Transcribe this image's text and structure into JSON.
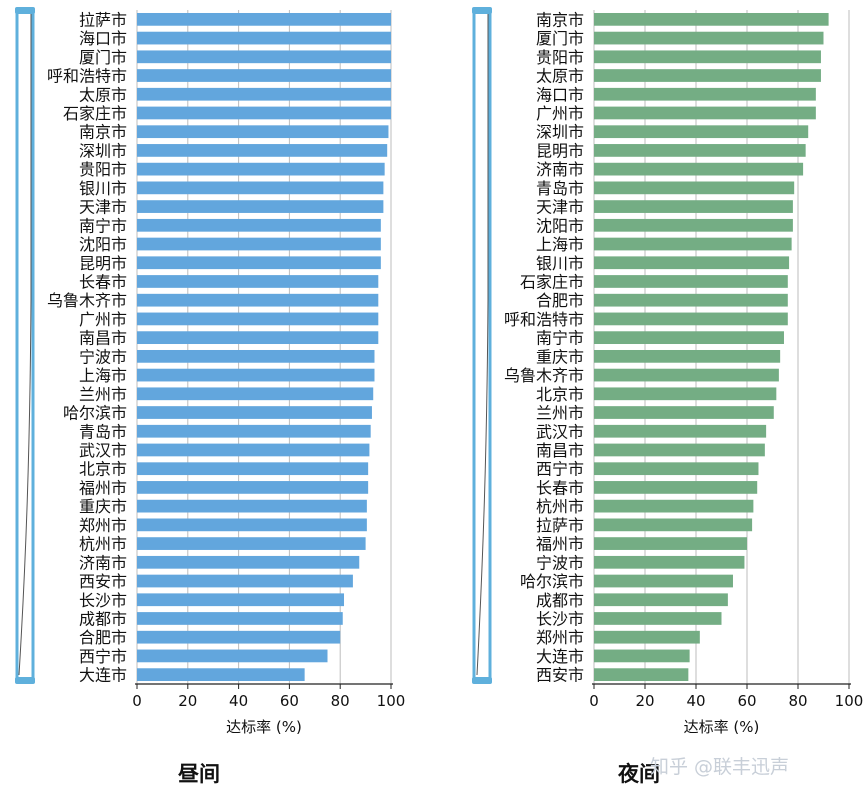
{
  "watermark": "知乎 @联丰迅声",
  "chart_data": [
    {
      "type": "bar",
      "orientation": "horizontal",
      "caption": "昼间",
      "xlabel": "达标率 (%)",
      "xlim": [
        0,
        100
      ],
      "xticks": [
        0,
        20,
        40,
        60,
        80,
        100
      ],
      "grid": true,
      "bar_color": "#62a6dd",
      "categories": [
        "拉萨市",
        "海口市",
        "厦门市",
        "呼和浩特市",
        "太原市",
        "石家庄市",
        "南京市",
        "深圳市",
        "贵阳市",
        "银川市",
        "天津市",
        "南宁市",
        "沈阳市",
        "昆明市",
        "长春市",
        "乌鲁木齐市",
        "广州市",
        "南昌市",
        "宁波市",
        "上海市",
        "兰州市",
        "哈尔滨市",
        "青岛市",
        "武汉市",
        "北京市",
        "福州市",
        "重庆市",
        "郑州市",
        "杭州市",
        "济南市",
        "西安市",
        "长沙市",
        "成都市",
        "合肥市",
        "西宁市",
        "大连市"
      ],
      "values": [
        100,
        100,
        100,
        100,
        100,
        100,
        99,
        98.5,
        97.5,
        97,
        97,
        96,
        96,
        96,
        95,
        95,
        95,
        95,
        93.5,
        93.5,
        93,
        92.5,
        92,
        91.5,
        91,
        91,
        90.5,
        90.5,
        90,
        87.5,
        85,
        81.5,
        81,
        80,
        75,
        66
      ]
    },
    {
      "type": "bar",
      "orientation": "horizontal",
      "caption": "夜间",
      "xlabel": "达标率 (%)",
      "xlim": [
        0,
        100
      ],
      "xticks": [
        0,
        20,
        40,
        60,
        80,
        100
      ],
      "grid": true,
      "bar_color": "#74ad84",
      "categories": [
        "南京市",
        "厦门市",
        "贵阳市",
        "太原市",
        "海口市",
        "广州市",
        "深圳市",
        "昆明市",
        "济南市",
        "青岛市",
        "天津市",
        "沈阳市",
        "上海市",
        "银川市",
        "石家庄市",
        "合肥市",
        "呼和浩特市",
        "南宁市",
        "重庆市",
        "乌鲁木齐市",
        "北京市",
        "兰州市",
        "武汉市",
        "南昌市",
        "西宁市",
        "长春市",
        "杭州市",
        "拉萨市",
        "福州市",
        "宁波市",
        "哈尔滨市",
        "成都市",
        "长沙市",
        "郑州市",
        "大连市",
        "西安市"
      ],
      "values": [
        92,
        90,
        89,
        89,
        87,
        87,
        84,
        83,
        82,
        78.5,
        78,
        78,
        77.5,
        76.5,
        76,
        76,
        76,
        74.5,
        73,
        72.5,
        71.5,
        70.5,
        67.5,
        67,
        64.5,
        64,
        62.5,
        62,
        60,
        59,
        54.5,
        52.5,
        50,
        41.5,
        37.5,
        37
      ]
    }
  ]
}
